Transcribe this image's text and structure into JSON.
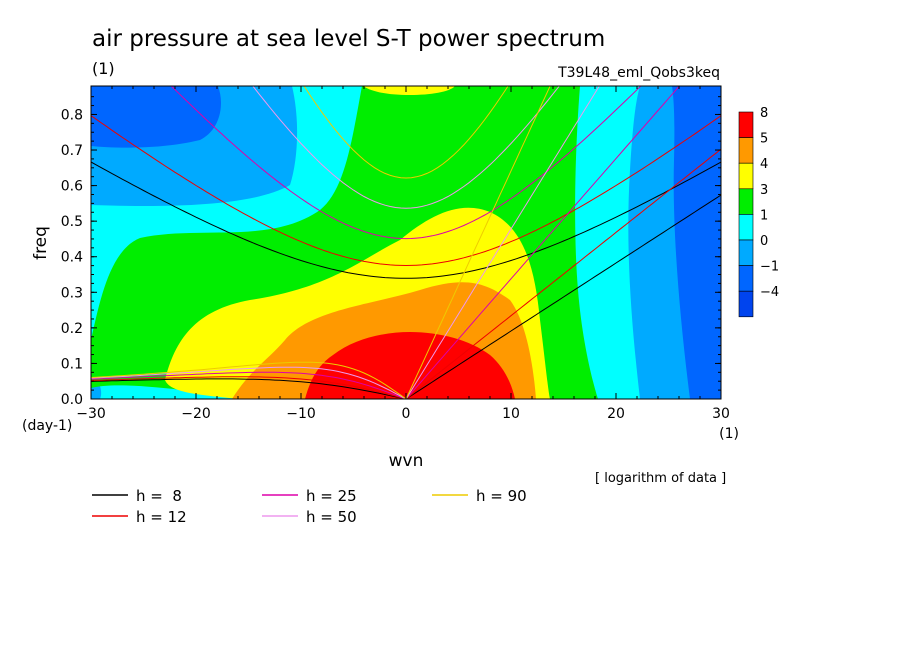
{
  "chart_data": {
    "type": "heatmap",
    "title": "air pressure at sea level S-T power spectrum",
    "title_units": "(1)",
    "experiment": "T39L48_eml_Qobs3keq",
    "xlabel": "wvn",
    "ylabel": "freq",
    "x_units": "(1)",
    "y_units": "(day-1)",
    "xlim": [
      -30,
      30
    ],
    "ylim": [
      0,
      0.88
    ],
    "xticks": [
      -30,
      -20,
      -10,
      0,
      10,
      20,
      30
    ],
    "yticks": [
      0.0,
      0.1,
      0.2,
      0.3,
      0.4,
      0.5,
      0.6,
      0.7,
      0.8
    ],
    "data_note": "[ logarithm of data ]",
    "colorbar": {
      "levels": [
        "8",
        "5",
        "4",
        "3",
        "1",
        "0",
        "−1",
        "−4"
      ],
      "colors": [
        "#ff0000",
        "#ff9900",
        "#ffff00",
        "#00ee00",
        "#00ffff",
        "#00aaff",
        "#0066ff",
        "#0044ee"
      ]
    },
    "dispersion_curves": [
      {
        "name": "h =  8",
        "h": 8,
        "color": "#000000"
      },
      {
        "name": "h = 12",
        "h": 12,
        "color": "#ee0000"
      },
      {
        "name": "h = 25",
        "h": 25,
        "color": "#dd00aa"
      },
      {
        "name": "h = 50",
        "h": 50,
        "color": "#ee99ee"
      },
      {
        "name": "h = 90",
        "h": 90,
        "color": "#eecc00"
      }
    ]
  }
}
